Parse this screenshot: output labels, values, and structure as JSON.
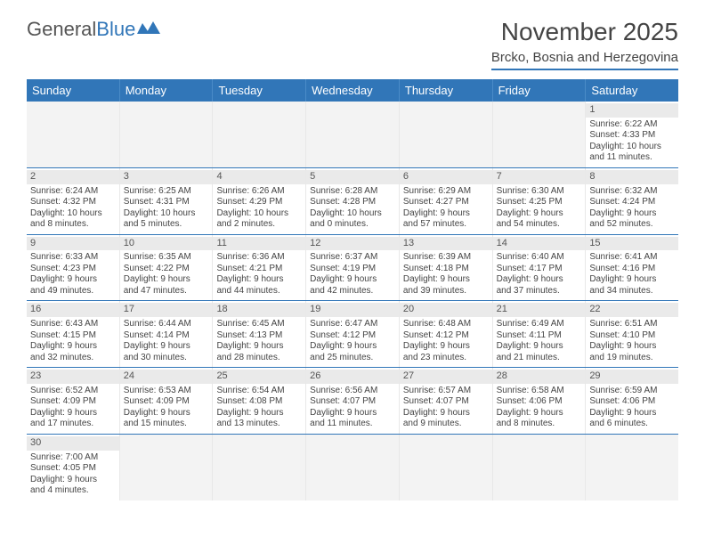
{
  "logo": {
    "text1": "General",
    "text2": "Blue"
  },
  "title": "November 2025",
  "subtitle": "Brcko, Bosnia and Herzegovina",
  "colors": {
    "header_bg": "#3176b8",
    "header_fg": "#ffffff",
    "daynum_bg": "#eaeaea",
    "text": "#444444",
    "empty_bg": "#f3f3f3",
    "divider": "#3176b8"
  },
  "daynames": [
    "Sunday",
    "Monday",
    "Tuesday",
    "Wednesday",
    "Thursday",
    "Friday",
    "Saturday"
  ],
  "weeks": [
    [
      {
        "empty": true
      },
      {
        "empty": true
      },
      {
        "empty": true
      },
      {
        "empty": true
      },
      {
        "empty": true
      },
      {
        "empty": true
      },
      {
        "num": "1",
        "sunrise": "Sunrise: 6:22 AM",
        "sunset": "Sunset: 4:33 PM",
        "day1": "Daylight: 10 hours",
        "day2": "and 11 minutes."
      }
    ],
    [
      {
        "num": "2",
        "sunrise": "Sunrise: 6:24 AM",
        "sunset": "Sunset: 4:32 PM",
        "day1": "Daylight: 10 hours",
        "day2": "and 8 minutes."
      },
      {
        "num": "3",
        "sunrise": "Sunrise: 6:25 AM",
        "sunset": "Sunset: 4:31 PM",
        "day1": "Daylight: 10 hours",
        "day2": "and 5 minutes."
      },
      {
        "num": "4",
        "sunrise": "Sunrise: 6:26 AM",
        "sunset": "Sunset: 4:29 PM",
        "day1": "Daylight: 10 hours",
        "day2": "and 2 minutes."
      },
      {
        "num": "5",
        "sunrise": "Sunrise: 6:28 AM",
        "sunset": "Sunset: 4:28 PM",
        "day1": "Daylight: 10 hours",
        "day2": "and 0 minutes."
      },
      {
        "num": "6",
        "sunrise": "Sunrise: 6:29 AM",
        "sunset": "Sunset: 4:27 PM",
        "day1": "Daylight: 9 hours",
        "day2": "and 57 minutes."
      },
      {
        "num": "7",
        "sunrise": "Sunrise: 6:30 AM",
        "sunset": "Sunset: 4:25 PM",
        "day1": "Daylight: 9 hours",
        "day2": "and 54 minutes."
      },
      {
        "num": "8",
        "sunrise": "Sunrise: 6:32 AM",
        "sunset": "Sunset: 4:24 PM",
        "day1": "Daylight: 9 hours",
        "day2": "and 52 minutes."
      }
    ],
    [
      {
        "num": "9",
        "sunrise": "Sunrise: 6:33 AM",
        "sunset": "Sunset: 4:23 PM",
        "day1": "Daylight: 9 hours",
        "day2": "and 49 minutes."
      },
      {
        "num": "10",
        "sunrise": "Sunrise: 6:35 AM",
        "sunset": "Sunset: 4:22 PM",
        "day1": "Daylight: 9 hours",
        "day2": "and 47 minutes."
      },
      {
        "num": "11",
        "sunrise": "Sunrise: 6:36 AM",
        "sunset": "Sunset: 4:21 PM",
        "day1": "Daylight: 9 hours",
        "day2": "and 44 minutes."
      },
      {
        "num": "12",
        "sunrise": "Sunrise: 6:37 AM",
        "sunset": "Sunset: 4:19 PM",
        "day1": "Daylight: 9 hours",
        "day2": "and 42 minutes."
      },
      {
        "num": "13",
        "sunrise": "Sunrise: 6:39 AM",
        "sunset": "Sunset: 4:18 PM",
        "day1": "Daylight: 9 hours",
        "day2": "and 39 minutes."
      },
      {
        "num": "14",
        "sunrise": "Sunrise: 6:40 AM",
        "sunset": "Sunset: 4:17 PM",
        "day1": "Daylight: 9 hours",
        "day2": "and 37 minutes."
      },
      {
        "num": "15",
        "sunrise": "Sunrise: 6:41 AM",
        "sunset": "Sunset: 4:16 PM",
        "day1": "Daylight: 9 hours",
        "day2": "and 34 minutes."
      }
    ],
    [
      {
        "num": "16",
        "sunrise": "Sunrise: 6:43 AM",
        "sunset": "Sunset: 4:15 PM",
        "day1": "Daylight: 9 hours",
        "day2": "and 32 minutes."
      },
      {
        "num": "17",
        "sunrise": "Sunrise: 6:44 AM",
        "sunset": "Sunset: 4:14 PM",
        "day1": "Daylight: 9 hours",
        "day2": "and 30 minutes."
      },
      {
        "num": "18",
        "sunrise": "Sunrise: 6:45 AM",
        "sunset": "Sunset: 4:13 PM",
        "day1": "Daylight: 9 hours",
        "day2": "and 28 minutes."
      },
      {
        "num": "19",
        "sunrise": "Sunrise: 6:47 AM",
        "sunset": "Sunset: 4:12 PM",
        "day1": "Daylight: 9 hours",
        "day2": "and 25 minutes."
      },
      {
        "num": "20",
        "sunrise": "Sunrise: 6:48 AM",
        "sunset": "Sunset: 4:12 PM",
        "day1": "Daylight: 9 hours",
        "day2": "and 23 minutes."
      },
      {
        "num": "21",
        "sunrise": "Sunrise: 6:49 AM",
        "sunset": "Sunset: 4:11 PM",
        "day1": "Daylight: 9 hours",
        "day2": "and 21 minutes."
      },
      {
        "num": "22",
        "sunrise": "Sunrise: 6:51 AM",
        "sunset": "Sunset: 4:10 PM",
        "day1": "Daylight: 9 hours",
        "day2": "and 19 minutes."
      }
    ],
    [
      {
        "num": "23",
        "sunrise": "Sunrise: 6:52 AM",
        "sunset": "Sunset: 4:09 PM",
        "day1": "Daylight: 9 hours",
        "day2": "and 17 minutes."
      },
      {
        "num": "24",
        "sunrise": "Sunrise: 6:53 AM",
        "sunset": "Sunset: 4:09 PM",
        "day1": "Daylight: 9 hours",
        "day2": "and 15 minutes."
      },
      {
        "num": "25",
        "sunrise": "Sunrise: 6:54 AM",
        "sunset": "Sunset: 4:08 PM",
        "day1": "Daylight: 9 hours",
        "day2": "and 13 minutes."
      },
      {
        "num": "26",
        "sunrise": "Sunrise: 6:56 AM",
        "sunset": "Sunset: 4:07 PM",
        "day1": "Daylight: 9 hours",
        "day2": "and 11 minutes."
      },
      {
        "num": "27",
        "sunrise": "Sunrise: 6:57 AM",
        "sunset": "Sunset: 4:07 PM",
        "day1": "Daylight: 9 hours",
        "day2": "and 9 minutes."
      },
      {
        "num": "28",
        "sunrise": "Sunrise: 6:58 AM",
        "sunset": "Sunset: 4:06 PM",
        "day1": "Daylight: 9 hours",
        "day2": "and 8 minutes."
      },
      {
        "num": "29",
        "sunrise": "Sunrise: 6:59 AM",
        "sunset": "Sunset: 4:06 PM",
        "day1": "Daylight: 9 hours",
        "day2": "and 6 minutes."
      }
    ],
    [
      {
        "num": "30",
        "sunrise": "Sunrise: 7:00 AM",
        "sunset": "Sunset: 4:05 PM",
        "day1": "Daylight: 9 hours",
        "day2": "and 4 minutes."
      },
      {
        "empty": true
      },
      {
        "empty": true
      },
      {
        "empty": true
      },
      {
        "empty": true
      },
      {
        "empty": true
      },
      {
        "empty": true
      }
    ]
  ]
}
